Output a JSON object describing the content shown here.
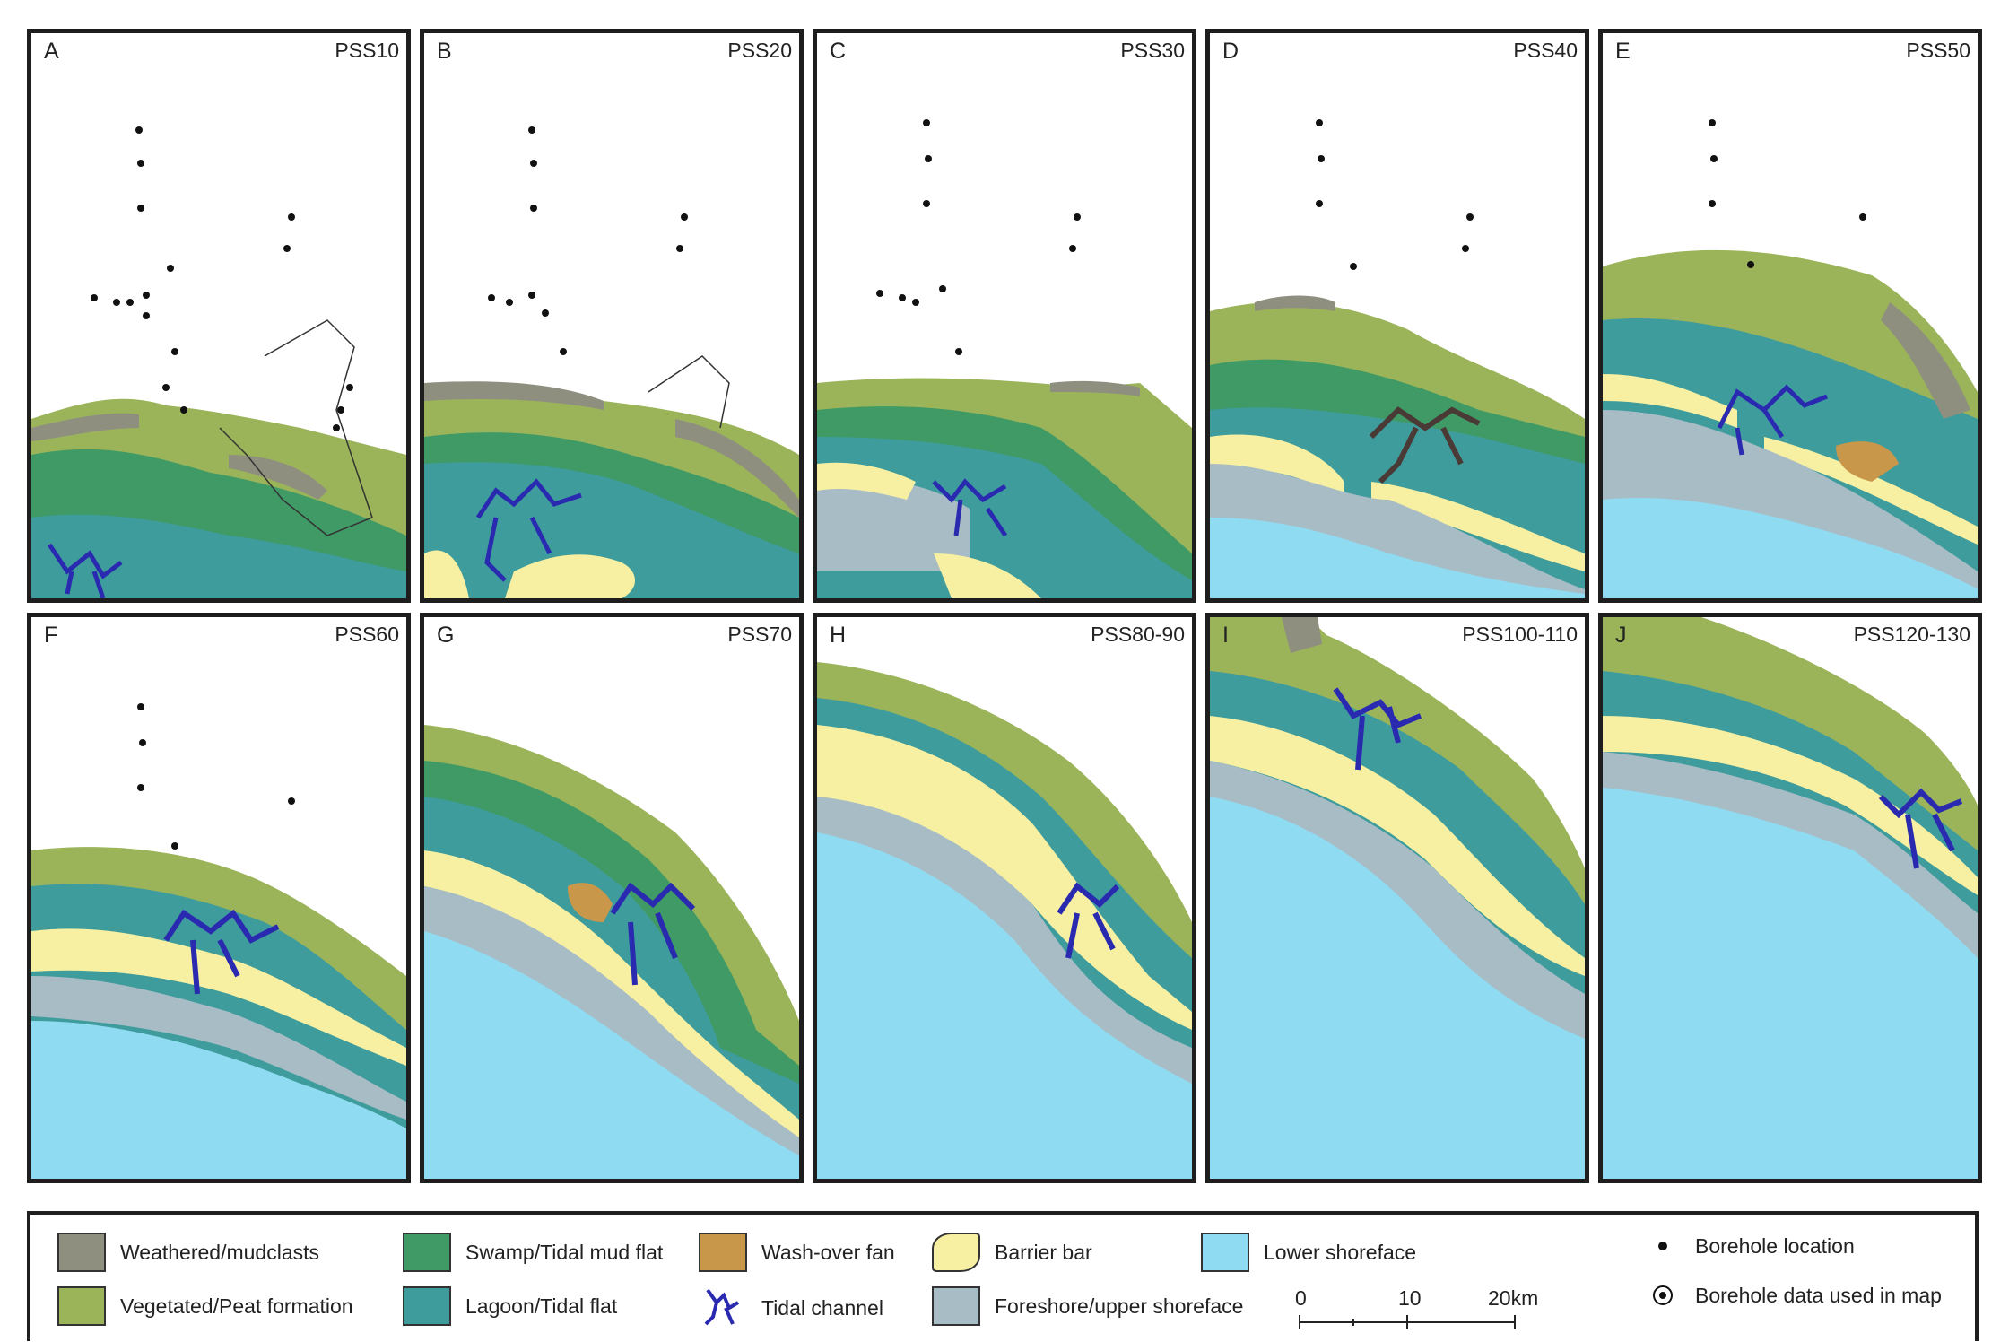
{
  "panels": [
    {
      "letter": "A",
      "title": "PSS10"
    },
    {
      "letter": "B",
      "title": "PSS20"
    },
    {
      "letter": "C",
      "title": "PSS30"
    },
    {
      "letter": "D",
      "title": "PSS40"
    },
    {
      "letter": "E",
      "title": "PSS50"
    },
    {
      "letter": "F",
      "title": "PSS60"
    },
    {
      "letter": "G",
      "title": "PSS70"
    },
    {
      "letter": "H",
      "title": "PSS80-90"
    },
    {
      "letter": "I",
      "title": "PSS100-110"
    },
    {
      "letter": "J",
      "title": "PSS120-130"
    }
  ],
  "legend": {
    "weathered": "Weathered/mudclasts",
    "vegetated": "Vegetated/Peat formation",
    "swamp": "Swamp/Tidal mud flat",
    "lagoon": "Lagoon/Tidal flat",
    "washover": "Wash-over fan",
    "tidal_channel": "Tidal channel",
    "barrier": "Barrier bar",
    "foreshore": "Foreshore/upper shoreface",
    "lower_shoreface": "Lower shoreface",
    "borehole_location": "Borehole location",
    "borehole_used": "Borehole data used in map",
    "scale_0": "0",
    "scale_10": "10",
    "scale_20": "20km"
  },
  "colors": {
    "weathered": "#8f8f80",
    "vegetated": "#9bb45a",
    "swamp": "#3f9a66",
    "lagoon": "#3f9c9c",
    "washover": "#c9974a",
    "tidal_channel": "#2a2ab0",
    "barrier": "#f7f0a2",
    "foreshore": "#a8bcc6",
    "lower_shoreface": "#8fdcf2"
  }
}
